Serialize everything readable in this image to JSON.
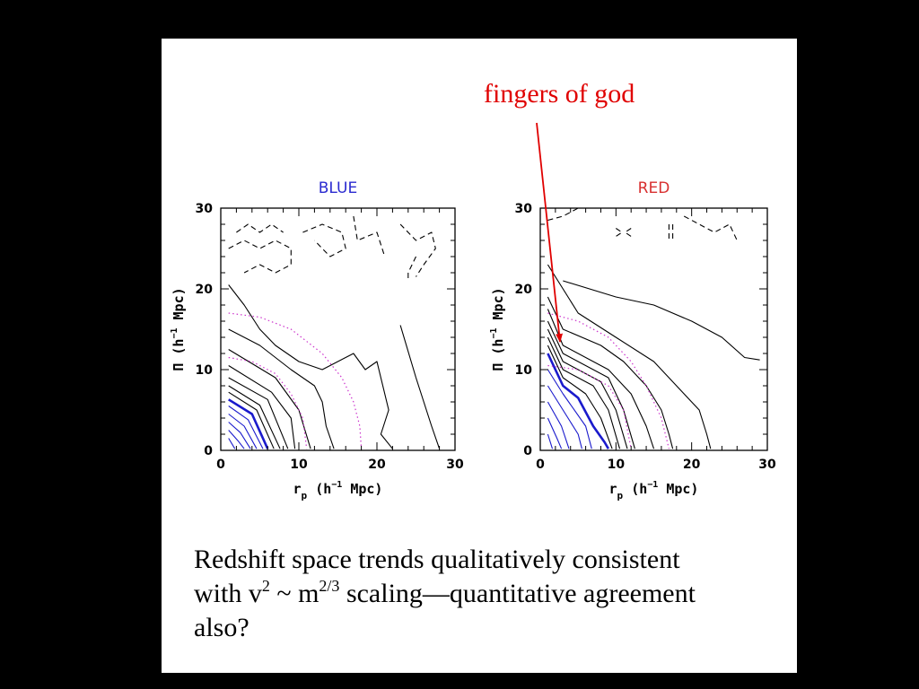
{
  "annotation": {
    "text": "fingers of god",
    "color": "#e00000"
  },
  "caption": {
    "line1": "Redshift space trends qualitatively consistent",
    "line2_pre": "with v",
    "line2_sup1": "2",
    "line2_mid": " ~ m",
    "line2_sup2": "2/3",
    "line2_post": " scaling—quantitative agreement",
    "line3": "also?"
  },
  "colors": {
    "blue": "#1a1acc",
    "red": "#e83030",
    "contour": "#000000",
    "model": "#cc33cc",
    "arrow": "#e00000"
  },
  "chart_data": [
    {
      "type": "contour",
      "title": "BLUE",
      "title_color": "#2b2bd0",
      "xlabel": "r_p (h^-1 Mpc)",
      "ylabel": "Π (h^-1 Mpc)",
      "xlim": [
        0,
        30
      ],
      "ylim": [
        0,
        30
      ],
      "xticks": [
        0,
        10,
        20,
        30
      ],
      "yticks": [
        0,
        10,
        20,
        30
      ],
      "contours": [
        {
          "style": "blue",
          "points": [
            [
              1,
              1.5
            ],
            [
              1.8,
              0.2
            ]
          ]
        },
        {
          "style": "blue",
          "points": [
            [
              1,
              2.5
            ],
            [
              2.2,
              1.2
            ],
            [
              3,
              0.2
            ]
          ]
        },
        {
          "style": "blue",
          "points": [
            [
              1,
              3.5
            ],
            [
              2.5,
              2.2
            ],
            [
              3.8,
              0.2
            ]
          ]
        },
        {
          "style": "blue",
          "points": [
            [
              1,
              4.5
            ],
            [
              3,
              3
            ],
            [
              4.6,
              0.2
            ]
          ]
        },
        {
          "style": "blue",
          "points": [
            [
              1,
              5.5
            ],
            [
              3.5,
              3.8
            ],
            [
              5.4,
              0.2
            ]
          ]
        },
        {
          "style": "blue-thick",
          "points": [
            [
              1,
              6.3
            ],
            [
              4,
              4.5
            ],
            [
              6,
              0.2
            ]
          ]
        },
        {
          "style": "solid",
          "points": [
            [
              1,
              7.2
            ],
            [
              4.6,
              5
            ],
            [
              6.8,
              0.2
            ]
          ]
        },
        {
          "style": "solid",
          "points": [
            [
              1,
              8
            ],
            [
              5,
              5.6
            ],
            [
              7.6,
              0.2
            ]
          ]
        },
        {
          "style": "solid",
          "points": [
            [
              1,
              9
            ],
            [
              6,
              6.3
            ],
            [
              8.6,
              0.2
            ]
          ]
        },
        {
          "style": "solid",
          "points": [
            [
              1,
              10.5
            ],
            [
              6.5,
              7.2
            ],
            [
              9,
              4
            ],
            [
              9.5,
              0.2
            ]
          ]
        },
        {
          "style": "solid",
          "points": [
            [
              1,
              12.5
            ],
            [
              7,
              9
            ],
            [
              10,
              5
            ],
            [
              11.5,
              0.2
            ]
          ]
        },
        {
          "style": "solid",
          "points": [
            [
              1,
              15
            ],
            [
              5,
              13
            ],
            [
              9,
              10
            ],
            [
              12,
              8
            ],
            [
              13,
              6
            ],
            [
              13.5,
              3
            ],
            [
              14.5,
              0.2
            ]
          ]
        },
        {
          "style": "solid",
          "points": [
            [
              1,
              20.5
            ],
            [
              3,
              18
            ],
            [
              5,
              15
            ],
            [
              7,
              13
            ],
            [
              10,
              11
            ],
            [
              13,
              10
            ],
            [
              17,
              12
            ],
            [
              18.5,
              10
            ],
            [
              20,
              11
            ],
            [
              21.5,
              5
            ],
            [
              20.5,
              2
            ],
            [
              22,
              0.2
            ]
          ]
        },
        {
          "style": "solid",
          "points": [
            [
              23,
              15.5
            ],
            [
              25,
              9
            ],
            [
              27,
              3
            ],
            [
              28,
              0.2
            ]
          ]
        },
        {
          "style": "dashed",
          "points": [
            [
              2,
              27
            ],
            [
              3.5,
              28
            ],
            [
              5,
              27
            ],
            [
              6.5,
              28
            ],
            [
              8,
              27
            ]
          ]
        },
        {
          "style": "dashed",
          "points": [
            [
              1,
              25
            ],
            [
              3,
              26
            ],
            [
              5,
              25
            ],
            [
              7,
              26
            ],
            [
              9,
              25
            ],
            [
              9,
              23
            ],
            [
              7,
              22
            ],
            [
              5,
              23
            ],
            [
              3,
              22
            ]
          ]
        },
        {
          "style": "dashed",
          "points": [
            [
              10.5,
              27
            ],
            [
              13,
              28
            ],
            [
              15.5,
              27
            ],
            [
              16,
              25
            ],
            [
              14,
              24
            ],
            [
              12,
              26
            ]
          ]
        },
        {
          "style": "dashed",
          "points": [
            [
              17,
              29
            ],
            [
              17.5,
              26
            ],
            [
              20,
              27
            ],
            [
              21,
              24
            ]
          ]
        },
        {
          "style": "dashed",
          "points": [
            [
              23,
              28
            ],
            [
              25,
              26
            ],
            [
              27,
              27
            ],
            [
              27.5,
              25
            ],
            [
              26,
              23
            ],
            [
              25,
              21.5
            ]
          ]
        },
        {
          "style": "dashed",
          "points": [
            [
              25,
              24
            ],
            [
              24,
              22
            ],
            [
              24,
              21
            ]
          ]
        },
        {
          "style": "model",
          "points": [
            [
              1,
              17
            ],
            [
              5,
              16.5
            ],
            [
              9,
              15
            ],
            [
              13,
              12
            ],
            [
              15.5,
              9
            ],
            [
              17,
              6
            ],
            [
              17.8,
              3
            ],
            [
              18,
              0.2
            ]
          ]
        },
        {
          "style": "model",
          "points": [
            [
              1,
              11.5
            ],
            [
              4,
              11
            ],
            [
              7,
              9.5
            ],
            [
              9,
              7
            ],
            [
              10.5,
              4
            ],
            [
              11,
              0.2
            ]
          ]
        }
      ]
    },
    {
      "type": "contour",
      "title": "RED",
      "title_color": "#d83030",
      "xlabel": "r_p (h^-1 Mpc)",
      "ylabel": "Π (h^-1 Mpc)",
      "xlim": [
        0,
        30
      ],
      "ylim": [
        0,
        30
      ],
      "xticks": [
        0,
        10,
        20,
        30
      ],
      "yticks": [
        0,
        10,
        20,
        30
      ],
      "contours": [
        {
          "style": "blue",
          "points": [
            [
              1,
              2
            ],
            [
              1.6,
              0.2
            ]
          ]
        },
        {
          "style": "blue",
          "points": [
            [
              1,
              4
            ],
            [
              2.2,
              1.5
            ],
            [
              2.8,
              0.2
            ]
          ]
        },
        {
          "style": "blue",
          "points": [
            [
              1,
              6
            ],
            [
              2.8,
              3
            ],
            [
              3.8,
              0.2
            ]
          ]
        },
        {
          "style": "blue",
          "points": [
            [
              1,
              8
            ],
            [
              3,
              5
            ],
            [
              5,
              2
            ],
            [
              5.5,
              0.2
            ]
          ]
        },
        {
          "style": "blue",
          "points": [
            [
              1,
              10
            ],
            [
              3,
              7
            ],
            [
              6,
              3
            ],
            [
              6.8,
              0.2
            ]
          ]
        },
        {
          "style": "blue-thick",
          "points": [
            [
              1,
              12
            ],
            [
              3,
              8
            ],
            [
              5,
              6.5
            ],
            [
              7,
              3
            ],
            [
              8.5,
              1
            ],
            [
              9,
              0.2
            ]
          ]
        },
        {
          "style": "solid",
          "points": [
            [
              1,
              13
            ],
            [
              3,
              9
            ],
            [
              6,
              7
            ],
            [
              8,
              4
            ],
            [
              9.5,
              0.2
            ]
          ]
        },
        {
          "style": "solid",
          "points": [
            [
              1,
              14
            ],
            [
              3,
              10
            ],
            [
              7,
              8
            ],
            [
              9,
              5
            ],
            [
              10.5,
              0.2
            ]
          ]
        },
        {
          "style": "solid",
          "points": [
            [
              1,
              15
            ],
            [
              3,
              11
            ],
            [
              8,
              8.5
            ],
            [
              10,
              5
            ],
            [
              11.5,
              0.2
            ]
          ]
        },
        {
          "style": "solid",
          "points": [
            [
              1,
              16
            ],
            [
              3,
              12
            ],
            [
              9,
              9
            ],
            [
              11,
              5
            ],
            [
              12.5,
              0.2
            ]
          ]
        },
        {
          "style": "solid",
          "points": [
            [
              1,
              17.5
            ],
            [
              3,
              13
            ],
            [
              9,
              10
            ],
            [
              12,
              7
            ],
            [
              14,
              3
            ],
            [
              15,
              0.2
            ]
          ]
        },
        {
          "style": "solid",
          "points": [
            [
              1,
              19
            ],
            [
              3,
              15
            ],
            [
              8,
              13
            ],
            [
              11,
              11
            ],
            [
              14,
              8
            ],
            [
              16,
              5
            ],
            [
              17,
              2
            ],
            [
              17.5,
              0.2
            ]
          ]
        },
        {
          "style": "solid",
          "points": [
            [
              1,
              23
            ],
            [
              5,
              17
            ],
            [
              10,
              14
            ],
            [
              15,
              11
            ],
            [
              19,
              7
            ],
            [
              21,
              5
            ],
            [
              22,
              2
            ],
            [
              22.5,
              0.2
            ]
          ]
        },
        {
          "style": "solid",
          "points": [
            [
              3,
              21
            ],
            [
              10,
              19
            ],
            [
              15,
              18
            ],
            [
              20,
              16
            ],
            [
              24,
              14
            ],
            [
              27,
              11.5
            ],
            [
              29,
              11.2
            ]
          ]
        },
        {
          "style": "dashed",
          "points": [
            [
              1,
              28.5
            ],
            [
              3,
              29
            ],
            [
              5,
              30
            ]
          ]
        },
        {
          "style": "dashed",
          "points": [
            [
              10,
              27.5
            ],
            [
              10.8,
              27
            ],
            [
              10,
              26.5
            ]
          ]
        },
        {
          "style": "dashed",
          "points": [
            [
              12,
              27.5
            ],
            [
              11.2,
              27
            ],
            [
              12,
              26.5
            ]
          ]
        },
        {
          "style": "dashed",
          "points": [
            [
              17,
              28
            ],
            [
              17,
              26
            ]
          ]
        },
        {
          "style": "dashed",
          "points": [
            [
              17.5,
              28
            ],
            [
              17.5,
              26
            ]
          ]
        },
        {
          "style": "dashed",
          "points": [
            [
              19,
              29
            ],
            [
              21,
              28
            ],
            [
              23,
              27
            ],
            [
              25,
              28
            ],
            [
              26,
              26
            ]
          ]
        },
        {
          "style": "model",
          "points": [
            [
              1,
              17
            ],
            [
              5,
              16
            ],
            [
              9,
              14
            ],
            [
              12,
              11
            ],
            [
              14,
              8
            ],
            [
              16,
              4
            ],
            [
              17,
              0.2
            ]
          ]
        },
        {
          "style": "model",
          "points": [
            [
              1,
              10.5
            ],
            [
              5,
              10
            ],
            [
              9,
              8
            ],
            [
              11,
              5
            ],
            [
              12,
              0.2
            ]
          ]
        }
      ]
    }
  ]
}
